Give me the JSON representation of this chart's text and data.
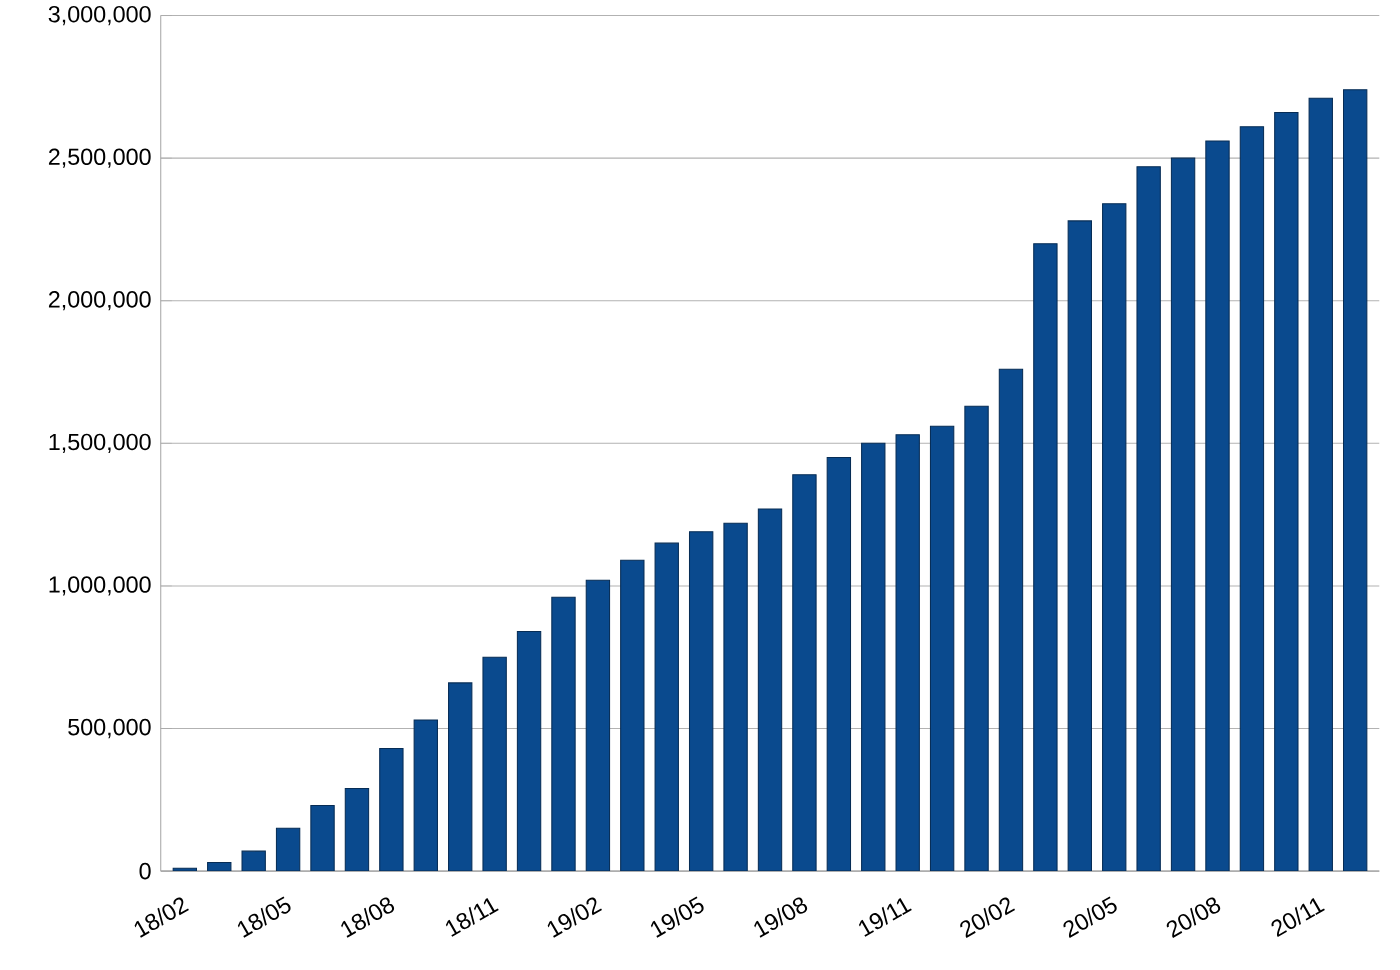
{
  "chart_data": {
    "type": "bar",
    "categories": [
      "18/02",
      null,
      null,
      "18/05",
      null,
      null,
      "18/08",
      null,
      null,
      "18/11",
      null,
      null,
      "19/02",
      null,
      null,
      "19/05",
      null,
      null,
      "19/08",
      null,
      null,
      "19/11",
      null,
      null,
      "20/02",
      null,
      null,
      "20/05",
      null,
      null,
      "20/08",
      null,
      null,
      "20/11",
      null
    ],
    "values": [
      10000,
      30000,
      70000,
      150000,
      230000,
      290000,
      430000,
      530000,
      660000,
      750000,
      840000,
      960000,
      1020000,
      1090000,
      1150000,
      1190000,
      1220000,
      1270000,
      1390000,
      1450000,
      1500000,
      1530000,
      1560000,
      1630000,
      1760000,
      2200000,
      2280000,
      2340000,
      2470000,
      2500000,
      2560000,
      2610000,
      2660000,
      2710000,
      2740000
    ],
    "color": "#0a4a8e",
    "ylim": [
      0,
      3000000
    ],
    "yticks": [
      {
        "value": 0,
        "label": "0"
      },
      {
        "value": 500000,
        "label": "500,000"
      },
      {
        "value": 1000000,
        "label": "1,000,000"
      },
      {
        "value": 1500000,
        "label": "1,500,000"
      },
      {
        "value": 2000000,
        "label": "2,000,000"
      },
      {
        "value": 2500000,
        "label": "2,500,000"
      },
      {
        "value": 3000000,
        "label": "3,000,000"
      }
    ],
    "grid": "y"
  }
}
